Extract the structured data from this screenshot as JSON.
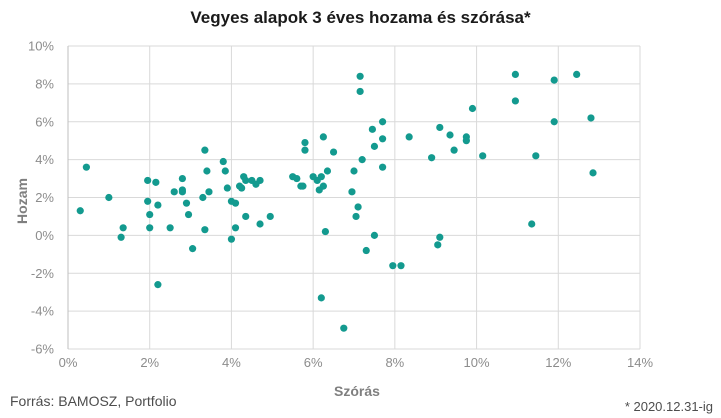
{
  "chart_data": {
    "type": "scatter",
    "title": "Vegyes alapok 3 éves hozama és szórása*",
    "xlabel": "Szórás",
    "ylabel": "Hozam",
    "xlim": [
      0,
      14
    ],
    "ylim": [
      -6,
      10
    ],
    "xticks": [
      0,
      2,
      4,
      6,
      8,
      10,
      12,
      14
    ],
    "yticks": [
      -6,
      -4,
      -2,
      0,
      2,
      4,
      6,
      8,
      10
    ],
    "xtick_labels": [
      "0%",
      "2%",
      "4%",
      "6%",
      "8%",
      "10%",
      "12%",
      "14%"
    ],
    "ytick_labels": [
      "-6%",
      "-4%",
      "-2%",
      "0%",
      "2%",
      "4%",
      "6%",
      "8%",
      "10%"
    ],
    "grid": "vertical-and-horizontal",
    "marker_color": "#139a8f",
    "points": [
      [
        0.3,
        1.3
      ],
      [
        0.45,
        3.6
      ],
      [
        1.0,
        2.0
      ],
      [
        1.3,
        -0.1
      ],
      [
        1.35,
        0.4
      ],
      [
        1.95,
        2.9
      ],
      [
        1.95,
        1.8
      ],
      [
        2.0,
        1.1
      ],
      [
        2.0,
        0.4
      ],
      [
        2.15,
        2.8
      ],
      [
        2.2,
        1.6
      ],
      [
        2.2,
        -2.6
      ],
      [
        2.5,
        0.4
      ],
      [
        2.6,
        2.3
      ],
      [
        2.8,
        3.0
      ],
      [
        2.8,
        2.4
      ],
      [
        2.8,
        2.3
      ],
      [
        2.9,
        1.7
      ],
      [
        2.95,
        1.1
      ],
      [
        3.05,
        -0.7
      ],
      [
        3.3,
        2.0
      ],
      [
        3.35,
        4.5
      ],
      [
        3.4,
        3.4
      ],
      [
        3.45,
        2.3
      ],
      [
        3.35,
        0.3
      ],
      [
        3.8,
        3.9
      ],
      [
        3.85,
        3.4
      ],
      [
        3.9,
        2.5
      ],
      [
        4.0,
        1.8
      ],
      [
        4.0,
        -0.2
      ],
      [
        4.1,
        1.7
      ],
      [
        4.1,
        0.4
      ],
      [
        4.2,
        2.6
      ],
      [
        4.25,
        2.5
      ],
      [
        4.3,
        3.1
      ],
      [
        4.35,
        2.9
      ],
      [
        4.35,
        1.0
      ],
      [
        4.5,
        2.9
      ],
      [
        4.6,
        2.7
      ],
      [
        4.7,
        2.9
      ],
      [
        4.7,
        0.6
      ],
      [
        4.95,
        1.0
      ],
      [
        5.5,
        3.1
      ],
      [
        5.6,
        3.0
      ],
      [
        5.7,
        2.6
      ],
      [
        5.75,
        2.6
      ],
      [
        5.8,
        4.9
      ],
      [
        5.8,
        4.5
      ],
      [
        6.0,
        3.1
      ],
      [
        6.1,
        2.9
      ],
      [
        6.2,
        3.1
      ],
      [
        6.15,
        2.4
      ],
      [
        6.25,
        2.6
      ],
      [
        6.25,
        5.2
      ],
      [
        6.3,
        0.2
      ],
      [
        6.35,
        3.4
      ],
      [
        6.5,
        4.4
      ],
      [
        6.2,
        -3.3
      ],
      [
        6.75,
        -4.9
      ],
      [
        6.95,
        2.3
      ],
      [
        7.0,
        3.4
      ],
      [
        7.05,
        1.0
      ],
      [
        7.1,
        1.5
      ],
      [
        7.15,
        8.4
      ],
      [
        7.15,
        7.6
      ],
      [
        7.2,
        4.0
      ],
      [
        7.3,
        -0.8
      ],
      [
        7.45,
        5.6
      ],
      [
        7.5,
        0.0
      ],
      [
        7.5,
        4.7
      ],
      [
        7.7,
        6.0
      ],
      [
        7.7,
        5.1
      ],
      [
        7.7,
        3.6
      ],
      [
        7.95,
        -1.6
      ],
      [
        8.15,
        -1.6
      ],
      [
        8.35,
        5.2
      ],
      [
        8.9,
        4.1
      ],
      [
        9.1,
        5.7
      ],
      [
        9.1,
        -0.1
      ],
      [
        9.05,
        -0.5
      ],
      [
        9.35,
        5.3
      ],
      [
        9.45,
        4.5
      ],
      [
        9.75,
        5.2
      ],
      [
        9.75,
        5.0
      ],
      [
        9.9,
        6.7
      ],
      [
        10.15,
        4.2
      ],
      [
        10.95,
        8.5
      ],
      [
        10.95,
        7.1
      ],
      [
        11.35,
        0.6
      ],
      [
        11.45,
        4.2
      ],
      [
        11.9,
        8.2
      ],
      [
        11.9,
        6.0
      ],
      [
        12.45,
        8.5
      ],
      [
        12.8,
        6.2
      ],
      [
        12.85,
        3.3
      ]
    ]
  },
  "source": "Forrás: BAMOSZ, Portfolio",
  "footnote": "* 2020.12.31-ig"
}
